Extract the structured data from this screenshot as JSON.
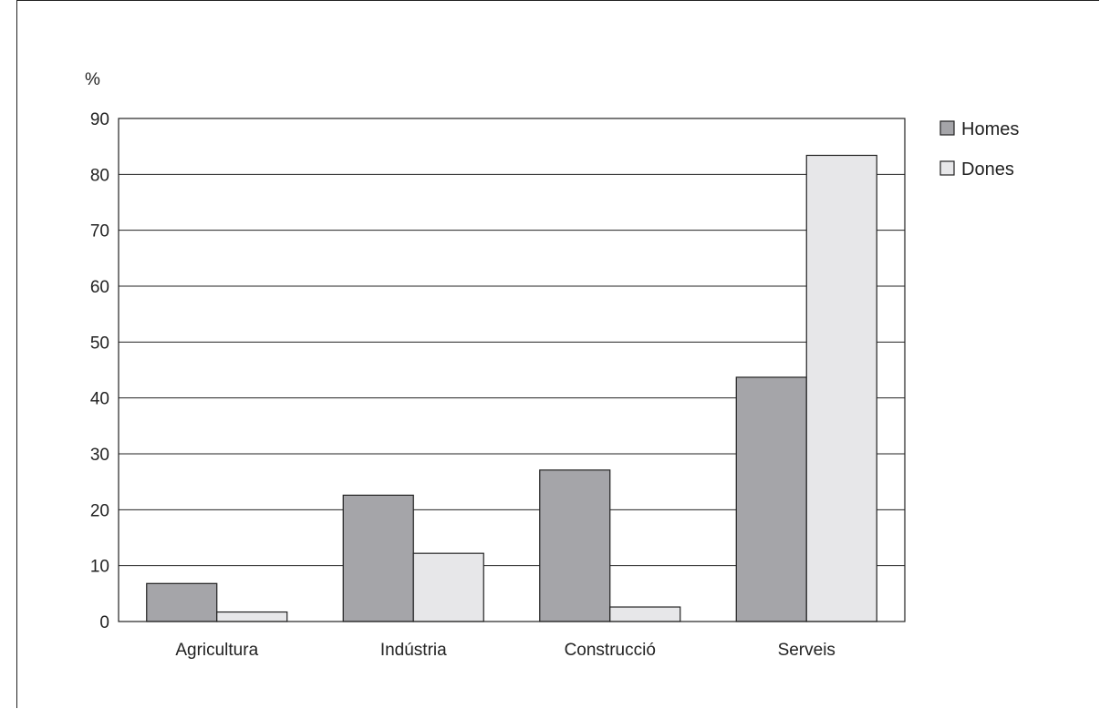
{
  "chart_data": {
    "type": "bar",
    "ylabel": "%",
    "ylim": [
      0,
      90
    ],
    "yticks": [
      0,
      10,
      20,
      30,
      40,
      50,
      60,
      70,
      80,
      90
    ],
    "grid": true,
    "legend_position": "right-top",
    "categories": [
      "Agricultura",
      "Indústria",
      "Construcció",
      "Serveis"
    ],
    "series": [
      {
        "name": "Homes",
        "color": "#a5a5a9",
        "values": [
          6.8,
          22.6,
          27.1,
          43.7
        ]
      },
      {
        "name": "Dones",
        "color": "#e7e7e9",
        "values": [
          1.7,
          12.2,
          2.6,
          83.4
        ]
      }
    ]
  }
}
